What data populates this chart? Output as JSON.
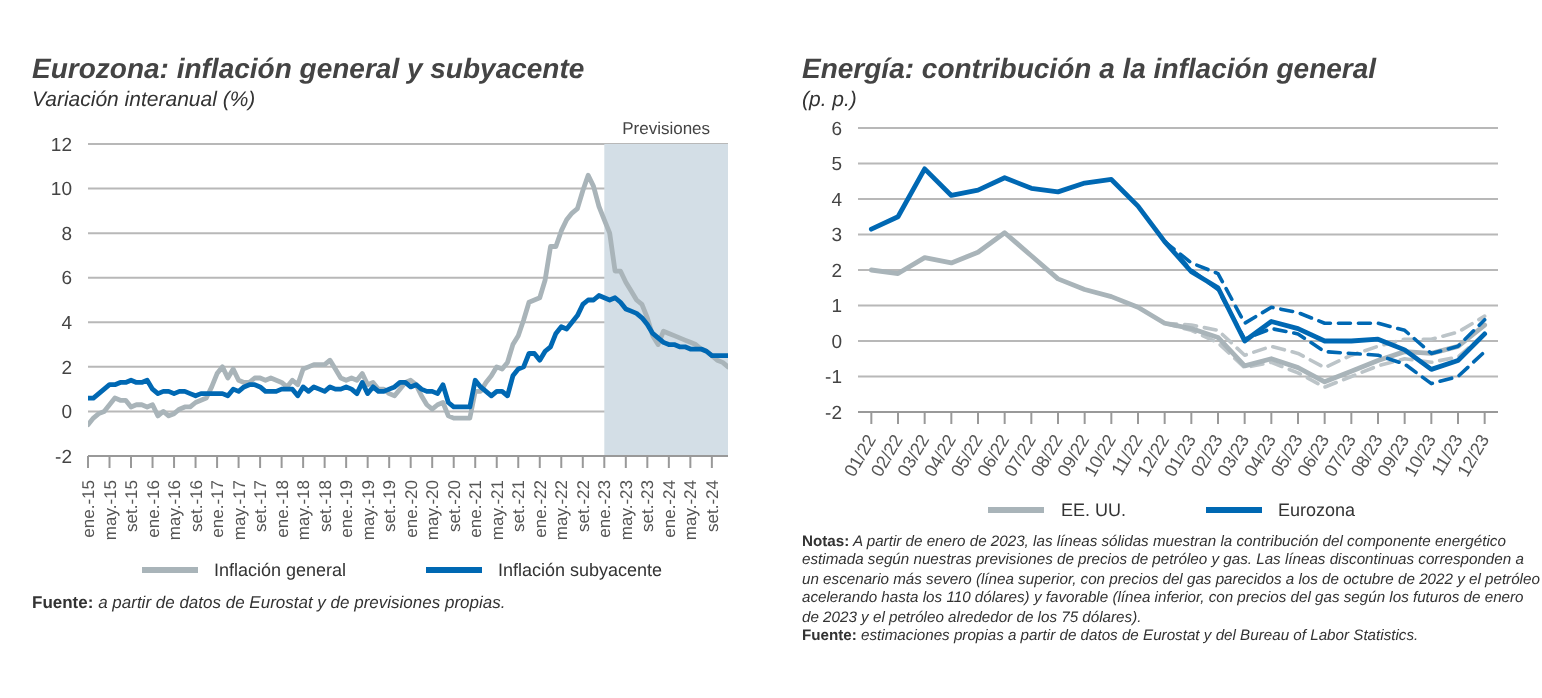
{
  "chart_data": [
    {
      "type": "line",
      "title": "Eurozona: inflación general y subyacente",
      "subtitle": "Variación interanual (%)",
      "x": [
        "2015-01",
        "2015-02",
        "2015-03",
        "2015-04",
        "2015-05",
        "2015-06",
        "2015-07",
        "2015-08",
        "2015-09",
        "2015-10",
        "2015-11",
        "2015-12",
        "2016-01",
        "2016-02",
        "2016-03",
        "2016-04",
        "2016-05",
        "2016-06",
        "2016-07",
        "2016-08",
        "2016-09",
        "2016-10",
        "2016-11",
        "2016-12",
        "2017-01",
        "2017-02",
        "2017-03",
        "2017-04",
        "2017-05",
        "2017-06",
        "2017-07",
        "2017-08",
        "2017-09",
        "2017-10",
        "2017-11",
        "2017-12",
        "2018-01",
        "2018-02",
        "2018-03",
        "2018-04",
        "2018-05",
        "2018-06",
        "2018-07",
        "2018-08",
        "2018-09",
        "2018-10",
        "2018-11",
        "2018-12",
        "2019-01",
        "2019-02",
        "2019-03",
        "2019-04",
        "2019-05",
        "2019-06",
        "2019-07",
        "2019-08",
        "2019-09",
        "2019-10",
        "2019-11",
        "2019-12",
        "2020-01",
        "2020-02",
        "2020-03",
        "2020-04",
        "2020-05",
        "2020-06",
        "2020-07",
        "2020-08",
        "2020-09",
        "2020-10",
        "2020-11",
        "2020-12",
        "2021-01",
        "2021-02",
        "2021-03",
        "2021-04",
        "2021-05",
        "2021-06",
        "2021-07",
        "2021-08",
        "2021-09",
        "2021-10",
        "2021-11",
        "2021-12",
        "2022-01",
        "2022-02",
        "2022-03",
        "2022-04",
        "2022-05",
        "2022-06",
        "2022-07",
        "2022-08",
        "2022-09",
        "2022-10",
        "2022-11",
        "2022-12",
        "2023-01",
        "2023-02",
        "2023-03",
        "2023-04",
        "2023-05",
        "2023-06",
        "2023-07",
        "2023-08",
        "2023-09",
        "2023-10",
        "2023-11",
        "2023-12",
        "2024-01",
        "2024-02",
        "2024-03",
        "2024-04",
        "2024-05",
        "2024-06",
        "2024-07",
        "2024-08",
        "2024-09",
        "2024-10",
        "2024-11",
        "2024-12"
      ],
      "series": [
        {
          "name": "Inflación general",
          "color": "#a9b4b9",
          "line_style": "solid",
          "values": [
            -0.6,
            -0.3,
            -0.1,
            0.0,
            0.3,
            0.6,
            0.5,
            0.5,
            0.2,
            0.3,
            0.3,
            0.2,
            0.3,
            -0.2,
            0.0,
            -0.2,
            -0.1,
            0.1,
            0.2,
            0.2,
            0.4,
            0.5,
            0.6,
            1.1,
            1.7,
            2.0,
            1.5,
            1.9,
            1.4,
            1.3,
            1.3,
            1.5,
            1.5,
            1.4,
            1.5,
            1.4,
            1.3,
            1.1,
            1.4,
            1.2,
            1.9,
            2.0,
            2.1,
            2.1,
            2.1,
            2.3,
            1.9,
            1.5,
            1.4,
            1.5,
            1.4,
            1.7,
            1.2,
            1.3,
            1.0,
            1.0,
            0.8,
            0.7,
            1.0,
            1.3,
            1.4,
            1.2,
            0.7,
            0.3,
            0.1,
            0.3,
            0.4,
            -0.2,
            -0.3,
            -0.3,
            -0.3,
            -0.3,
            0.9,
            0.9,
            1.3,
            1.6,
            2.0,
            1.9,
            2.2,
            3.0,
            3.4,
            4.1,
            4.9,
            5.0,
            5.1,
            5.9,
            7.4,
            7.4,
            8.1,
            8.6,
            8.9,
            9.1,
            9.9,
            10.6,
            10.1,
            9.2,
            8.6,
            8.0,
            6.3,
            6.3,
            5.8,
            5.4,
            5.0,
            4.8,
            4.2,
            3.4,
            3.0,
            3.6,
            3.5,
            3.4,
            3.3,
            3.2,
            3.1,
            3.0,
            2.8,
            2.7,
            2.5,
            2.3,
            2.2,
            2.0
          ]
        },
        {
          "name": "Inflación subyacente",
          "color": "#0068b3",
          "line_style": "solid",
          "values": [
            0.6,
            0.6,
            0.8,
            1.0,
            1.2,
            1.2,
            1.3,
            1.3,
            1.4,
            1.3,
            1.3,
            1.4,
            1.0,
            0.8,
            0.9,
            0.9,
            0.8,
            0.9,
            0.9,
            0.8,
            0.7,
            0.8,
            0.8,
            0.8,
            0.8,
            0.8,
            0.7,
            1.0,
            0.9,
            1.1,
            1.2,
            1.2,
            1.1,
            0.9,
            0.9,
            0.9,
            1.0,
            1.0,
            1.0,
            0.7,
            1.1,
            0.9,
            1.1,
            1.0,
            0.9,
            1.1,
            1.0,
            1.0,
            1.1,
            1.0,
            0.8,
            1.3,
            0.8,
            1.1,
            0.9,
            0.9,
            1.0,
            1.1,
            1.3,
            1.3,
            1.1,
            1.2,
            1.0,
            0.9,
            0.9,
            0.8,
            1.2,
            0.4,
            0.2,
            0.2,
            0.2,
            0.2,
            1.4,
            1.1,
            0.9,
            0.7,
            0.9,
            0.9,
            0.7,
            1.6,
            1.9,
            2.0,
            2.6,
            2.6,
            2.3,
            2.7,
            2.9,
            3.5,
            3.8,
            3.7,
            4.0,
            4.3,
            4.8,
            5.0,
            5.0,
            5.2,
            5.1,
            5.0,
            5.1,
            4.9,
            4.6,
            4.5,
            4.4,
            4.2,
            3.9,
            3.5,
            3.3,
            3.1,
            3.0,
            3.0,
            2.9,
            2.9,
            2.8,
            2.8,
            2.8,
            2.7,
            2.5,
            2.5,
            2.5,
            2.5
          ]
        }
      ],
      "xlim": [
        "2015-01",
        "2024-12"
      ],
      "xticks": [
        {
          "value": "2015-01",
          "label": "ene.-15"
        },
        {
          "value": "2015-05",
          "label": "may.-15"
        },
        {
          "value": "2015-09",
          "label": "set.-15"
        },
        {
          "value": "2016-01",
          "label": "ene.-16"
        },
        {
          "value": "2016-05",
          "label": "may.-16"
        },
        {
          "value": "2016-09",
          "label": "set.-16"
        },
        {
          "value": "2017-01",
          "label": "ene.-17"
        },
        {
          "value": "2017-05",
          "label": "may.-17"
        },
        {
          "value": "2017-09",
          "label": "set.-17"
        },
        {
          "value": "2018-01",
          "label": "ene.-18"
        },
        {
          "value": "2018-05",
          "label": "may.-18"
        },
        {
          "value": "2018-09",
          "label": "set.-18"
        },
        {
          "value": "2019-01",
          "label": "ene.-19"
        },
        {
          "value": "2019-05",
          "label": "may.-19"
        },
        {
          "value": "2019-09",
          "label": "set.-19"
        },
        {
          "value": "2020-01",
          "label": "ene.-20"
        },
        {
          "value": "2020-05",
          "label": "may.-20"
        },
        {
          "value": "2020-09",
          "label": "set.-20"
        },
        {
          "value": "2021-01",
          "label": "ene.-21"
        },
        {
          "value": "2021-05",
          "label": "may.-21"
        },
        {
          "value": "2021-09",
          "label": "set.-21"
        },
        {
          "value": "2022-01",
          "label": "ene.-22"
        },
        {
          "value": "2022-05",
          "label": "may.-22"
        },
        {
          "value": "2022-09",
          "label": "set.-22"
        },
        {
          "value": "2023-01",
          "label": "ene.-23"
        },
        {
          "value": "2023-05",
          "label": "may.-23"
        },
        {
          "value": "2023-09",
          "label": "set.-23"
        },
        {
          "value": "2024-01",
          "label": "ene.-24"
        },
        {
          "value": "2024-05",
          "label": "may.-24"
        },
        {
          "value": "2024-09",
          "label": "set.-24"
        }
      ],
      "ylim": [
        -2,
        12
      ],
      "yticks": [
        -2,
        0,
        2,
        4,
        6,
        8,
        10,
        12
      ],
      "grid": "y",
      "legend": "bottom",
      "bands": [
        {
          "axis": "x",
          "from": "2023-01",
          "to": "2024-12",
          "label": "Previsiones",
          "color": "#d3dee6"
        }
      ],
      "annotations": [
        "Fuente: a partir de datos de Eurostat y de previsiones propias."
      ]
    },
    {
      "type": "line",
      "title": "Energía: contribución a la inflación general",
      "subtitle": "(p. p.)",
      "categories": [
        "01/22",
        "02/22",
        "03/22",
        "04/22",
        "05/22",
        "06/22",
        "07/22",
        "08/22",
        "09/22",
        "10/22",
        "11/22",
        "12/22",
        "01/23",
        "02/23",
        "03/23",
        "04/23",
        "05/23",
        "06/23",
        "07/23",
        "08/23",
        "09/23",
        "10/23",
        "11/23",
        "12/23"
      ],
      "series": [
        {
          "color": "#bcc4c8",
          "line_style": "dashed",
          "values": [
            null,
            null,
            null,
            null,
            null,
            null,
            null,
            null,
            null,
            null,
            null,
            0.5,
            0.45,
            0.3,
            -0.4,
            -0.15,
            -0.35,
            -0.75,
            -0.4,
            -0.15,
            0.05,
            0.05,
            0.25,
            0.7
          ]
        },
        {
          "color": "#bcc4c8",
          "line_style": "dashed",
          "values": [
            null,
            null,
            null,
            null,
            null,
            null,
            null,
            null,
            null,
            null,
            null,
            0.5,
            0.3,
            -0.05,
            -0.75,
            -0.6,
            -0.9,
            -1.3,
            -1.0,
            -0.7,
            -0.5,
            -0.6,
            -0.45,
            0.2
          ]
        },
        {
          "name": "EE. UU.",
          "color": "#a9b4b9",
          "line_style": "solid",
          "values": [
            2.0,
            1.9,
            2.35,
            2.2,
            2.5,
            3.05,
            2.4,
            1.75,
            1.45,
            1.25,
            0.95,
            0.5,
            0.35,
            0.1,
            -0.7,
            -0.5,
            -0.75,
            -1.15,
            -0.85,
            -0.55,
            -0.3,
            -0.35,
            -0.15,
            0.45
          ]
        },
        {
          "color": "#0068b3",
          "line_style": "dashed",
          "values": [
            null,
            null,
            null,
            null,
            null,
            null,
            null,
            null,
            null,
            null,
            null,
            2.8,
            2.2,
            1.9,
            0.5,
            0.95,
            0.8,
            0.5,
            0.5,
            0.5,
            0.3,
            -0.35,
            -0.15,
            0.6
          ]
        },
        {
          "color": "#0068b3",
          "line_style": "dashed",
          "values": [
            null,
            null,
            null,
            null,
            null,
            null,
            null,
            null,
            null,
            null,
            null,
            2.8,
            2.0,
            1.45,
            0.05,
            0.35,
            0.2,
            -0.3,
            -0.35,
            -0.4,
            -0.65,
            -1.2,
            -1.0,
            -0.3
          ]
        },
        {
          "name": "Eurozona",
          "color": "#0068b3",
          "line_style": "solid",
          "values": [
            3.15,
            3.5,
            4.85,
            4.1,
            4.25,
            4.6,
            4.3,
            4.2,
            4.45,
            4.55,
            3.8,
            2.8,
            1.95,
            1.5,
            0.0,
            0.55,
            0.35,
            0.0,
            0.0,
            0.05,
            -0.25,
            -0.8,
            -0.55,
            0.2
          ]
        }
      ],
      "ylim": [
        -2,
        6
      ],
      "yticks": [
        -2,
        -1,
        0,
        1,
        2,
        3,
        4,
        5,
        6
      ],
      "grid": "y",
      "legend": "bottom",
      "annotations": [
        "Notas: A partir de enero de 2023, las líneas sólidas muestran la contribución del componente energético estimada según nuestras previsiones de precios de petróleo y gas. Las líneas discontinuas corresponden a un escenario más severo (línea superior, con precios del gas parecidos a los de octubre de 2022 y el petróleo acelerando hasta los 110 dólares) y favorable (línea inferior, con precios del gas según los futuros de enero de 2023 y el petróleo alrededor de los 75 dólares).",
        "Fuente: estimaciones propias a partir de datos de Eurostat y del Bureau of Labor Statistics."
      ]
    }
  ]
}
